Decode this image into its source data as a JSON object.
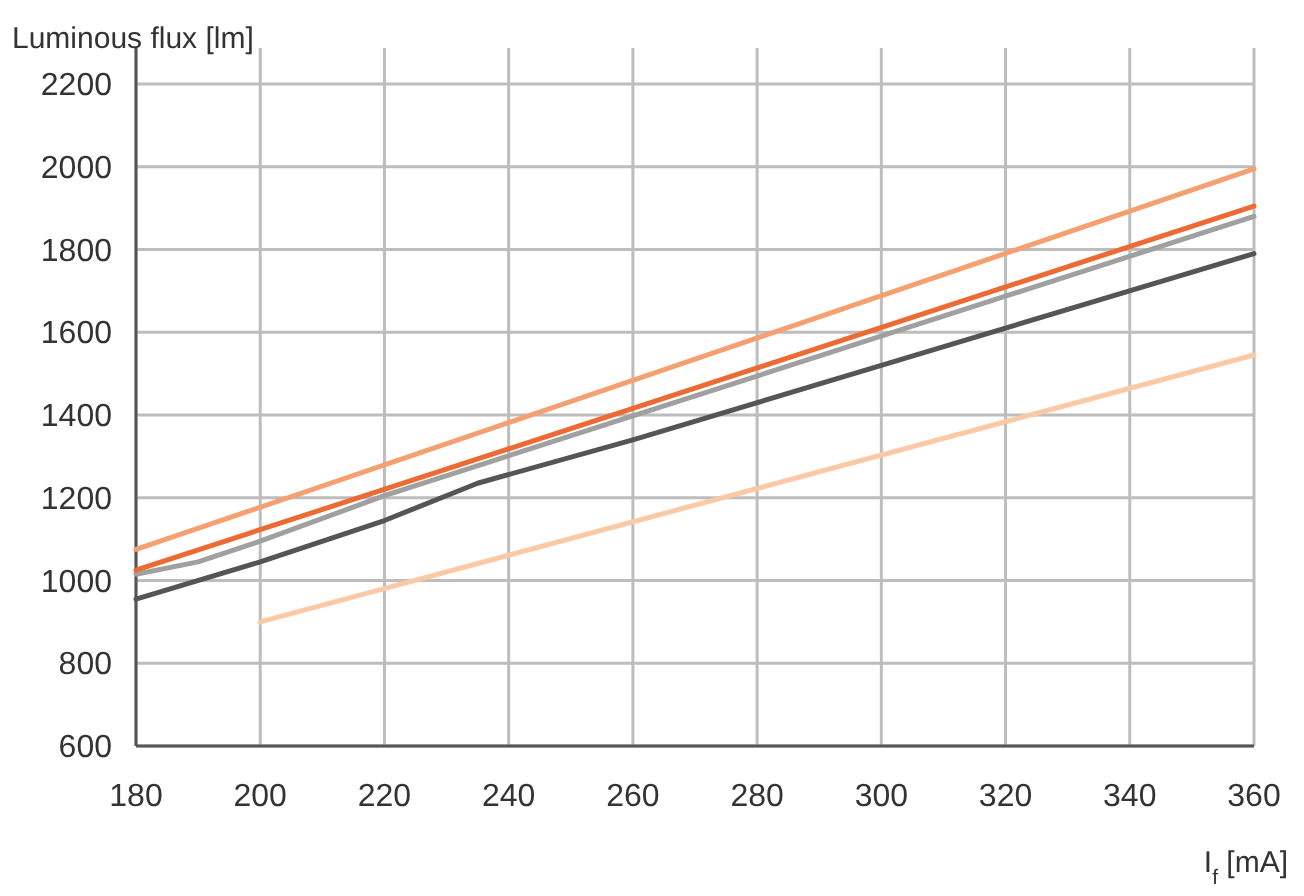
{
  "chart_data": {
    "type": "line",
    "ylabel": "Luminous flux [lm]",
    "xlabel": "I$_{f}$ [mA]",
    "xlim": [
      180,
      360
    ],
    "xticks": [
      180,
      200,
      220,
      240,
      260,
      280,
      300,
      320,
      340,
      360
    ],
    "ylim": [
      600,
      2200
    ],
    "yticks": [
      600,
      800,
      1000,
      1200,
      1400,
      1600,
      1800,
      2000,
      2200
    ],
    "grid": true,
    "line_style": "solid",
    "series": [
      {
        "color": "#fbc9a6",
        "x": [
          200,
          360
        ],
        "values": [
          900,
          1545
        ]
      },
      {
        "color": "#555555",
        "x": [
          180,
          200,
          220,
          235,
          260,
          300,
          360
        ],
        "values": [
          955,
          1045,
          1145,
          1235,
          1340,
          1520,
          1790
        ]
      },
      {
        "color": "#a0a0a0",
        "x": [
          180,
          190,
          200,
          220,
          360
        ],
        "values": [
          1015,
          1045,
          1095,
          1205,
          1880
        ]
      },
      {
        "color": "#ec6a33",
        "x": [
          180,
          360
        ],
        "values": [
          1025,
          1905
        ]
      },
      {
        "color": "#f5a070",
        "x": [
          180,
          360
        ],
        "values": [
          1075,
          1995
        ]
      }
    ]
  }
}
